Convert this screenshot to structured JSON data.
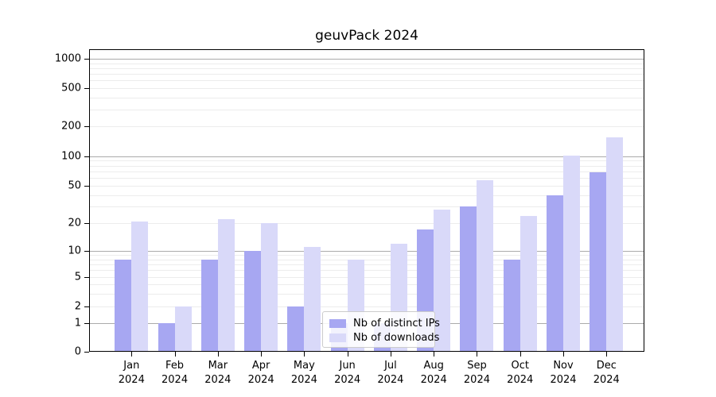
{
  "title": "geuvPack 2024",
  "colors": {
    "ips_bar": "#a7a7f2",
    "downloads_bar": "#d9d9f9",
    "grid_major": "#ababab",
    "grid_minor": "#ececec",
    "legend_border": "#cccccc"
  },
  "legend": {
    "items": [
      {
        "label": "Nb of distinct IPs",
        "series": "ips"
      },
      {
        "label": "Nb of downloads",
        "series": "downloads"
      }
    ]
  },
  "chart_data": {
    "type": "bar",
    "title": "geuvPack 2024",
    "categories": [
      "Jan 2024",
      "Feb 2024",
      "Mar 2024",
      "Apr 2024",
      "May 2024",
      "Jun 2024",
      "Jul 2024",
      "Aug 2024",
      "Sep 2024",
      "Oct 2024",
      "Nov 2024",
      "Dec 2024"
    ],
    "x_tick_month": [
      "Jan",
      "Feb",
      "Mar",
      "Apr",
      "May",
      "Jun",
      "Jul",
      "Aug",
      "Sep",
      "Oct",
      "Nov",
      "Dec"
    ],
    "x_tick_year": "2024",
    "series": [
      {
        "name": "Nb of distinct IPs",
        "values": [
          8,
          1,
          8,
          10,
          2,
          1,
          1,
          17,
          30,
          8,
          40,
          69
        ]
      },
      {
        "name": "Nb of downloads",
        "values": [
          21,
          2,
          22,
          20,
          11,
          8,
          12,
          28,
          57,
          24,
          102,
          155
        ]
      }
    ],
    "xlabel": "",
    "ylabel": "",
    "yscale": "log-like (symlog with linear segment 0-1)",
    "yticks": [
      0,
      1,
      2,
      5,
      10,
      20,
      50,
      100,
      200,
      500,
      1000
    ],
    "ylim": [
      0,
      1300
    ],
    "grid": "horizontal major + faint log minor lines",
    "legend_position": "lower center inside plot"
  }
}
